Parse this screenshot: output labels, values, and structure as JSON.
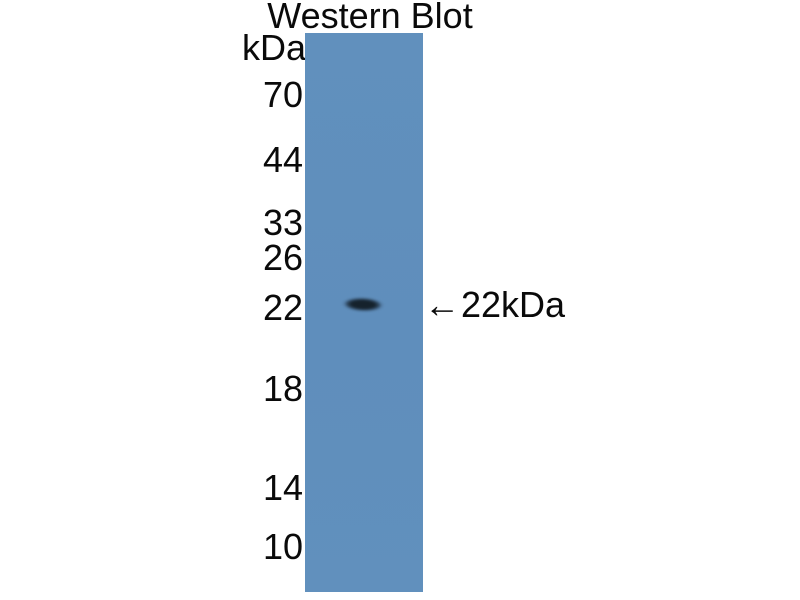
{
  "figure": {
    "title": "Western Blot",
    "unit_label": "kDa",
    "ladder_kda_values": [
      70,
      44,
      33,
      26,
      22,
      18,
      14,
      10
    ],
    "ladder_markers": [
      {
        "label": "70"
      },
      {
        "label": "44"
      },
      {
        "label": "33"
      },
      {
        "label": "26"
      },
      {
        "label": "22"
      },
      {
        "label": "18"
      },
      {
        "label": "14"
      },
      {
        "label": "10"
      }
    ],
    "band": {
      "kda": 22,
      "lane": 1
    },
    "band_annotation": {
      "arrow": "←",
      "label": "22kDa"
    },
    "colors": {
      "lane_blue": "#6190bd",
      "band_dark": "#15222c",
      "text": "#0a0a0a",
      "background": "#ffffff"
    }
  }
}
